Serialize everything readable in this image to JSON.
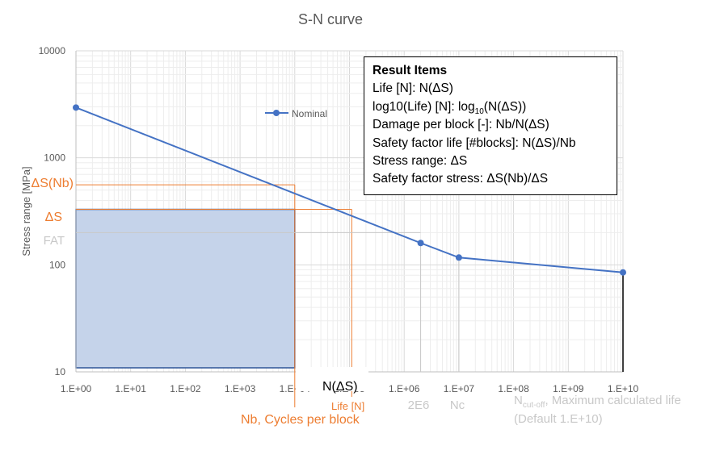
{
  "chart_data": {
    "type": "line",
    "title": "S-N curve",
    "ylabel": "Stress range [MPa]",
    "x_scale": "log",
    "y_scale": "log",
    "xlim": [
      1,
      10000000000
    ],
    "ylim": [
      10,
      10000
    ],
    "x_ticks": [
      "1.E+00",
      "1.E+01",
      "1.E+02",
      "1.E+03",
      "1.E+04",
      "1.E+05",
      "1.E+06",
      "1.E+07",
      "1.E+08",
      "1.E+09",
      "1.E+10"
    ],
    "y_ticks": [
      "10",
      "100",
      "1000",
      "10000"
    ],
    "grid": true,
    "legend_position": "top-left",
    "series": [
      {
        "name": "Nominal",
        "color": "#4472c4",
        "points": [
          {
            "x": 1,
            "y": 2950
          },
          {
            "x": 2000000,
            "y": 160
          },
          {
            "x": 10000000,
            "y": 117
          },
          {
            "x": 10000000000,
            "y": 85
          }
        ]
      }
    ],
    "annotations": {
      "delta_s_nb": {
        "label": "ΔS(Nb)",
        "y": 560,
        "x": 10000
      },
      "delta_s": {
        "label": "ΔS",
        "y": 330,
        "x_life": 110000
      },
      "fat": {
        "label": "FAT",
        "y": 200
      },
      "n_delta_s": "N(ΔS)",
      "life": "Life [N]",
      "nb": {
        "label": "Nb, Cycles per block",
        "x": 10000
      },
      "two_e6": "2E6",
      "nc": "Nc",
      "n_cutoff_main": "N",
      "n_cutoff_sub": "cut-off",
      "n_cutoff_rest": ", Maximum calculated life",
      "n_cutoff_default": "(Default 1.E+10)"
    }
  },
  "result_items": {
    "title": "Result Items",
    "life": "Life [N]: N(ΔS)",
    "log_life_prefix": "log10(Life) [N]: log",
    "log_life_sub": "10",
    "log_life_suffix": "(N(ΔS))",
    "damage": "Damage per block [-]: Nb/N(ΔS)",
    "safety_life": "Safety factor life [#blocks]: N(ΔS)/Nb",
    "stress_range": "Stress range: ΔS",
    "safety_stress": "Safety factor stress: ΔS(Nb)/ΔS"
  },
  "colors": {
    "series": "#4472c4",
    "annotation": "#ed7d31",
    "muted": "#c8c8c8",
    "fill": "#c5d3ea"
  }
}
